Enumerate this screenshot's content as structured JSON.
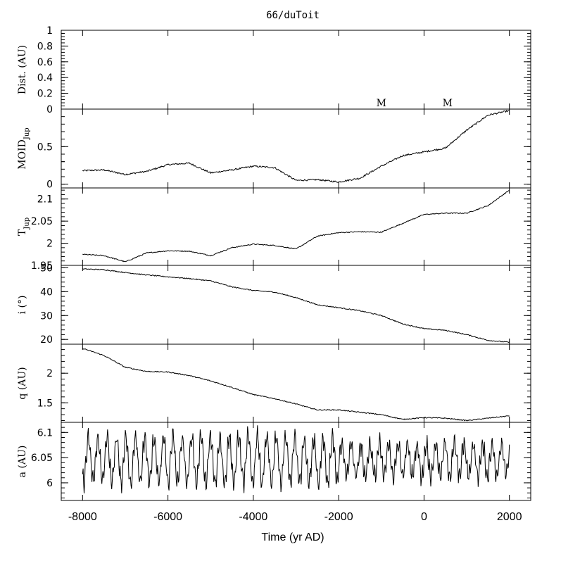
{
  "chart_data": {
    "type": "line",
    "title": "66/duToit",
    "xlabel": "Time (yr AD)",
    "xlim": [
      -8500,
      2500
    ],
    "xticks": [
      -8000,
      -6000,
      -4000,
      -2000,
      0,
      2000
    ],
    "xtick_labels": [
      "-8000",
      "-6000",
      "-4000",
      "-2000",
      "0",
      "2000"
    ],
    "panels": [
      {
        "key": "dist",
        "ylabel": "Dist. (AU)",
        "ylim": [
          0,
          1
        ],
        "yticks": [
          0,
          0.2,
          0.4,
          0.6,
          0.8,
          1
        ],
        "ytick_labels": [
          "0",
          "0.2",
          "0.4",
          "0.6",
          "0.8",
          "1"
        ],
        "x": [],
        "y": [],
        "markers": [
          {
            "label": "M",
            "x": -1000
          },
          {
            "label": "M",
            "x": 550
          }
        ]
      },
      {
        "key": "moid",
        "ylabel": "MOID",
        "ylabel_sub": "Jup",
        "style": "thick",
        "ylim": [
          -0.05,
          1.0
        ],
        "yticks": [
          0,
          0.5
        ],
        "ytick_labels": [
          "0",
          "0.5"
        ],
        "x": [
          -8000,
          -7500,
          -7000,
          -6500,
          -6000,
          -5500,
          -5000,
          -4500,
          -4000,
          -3500,
          -3000,
          -2500,
          -2000,
          -1500,
          -1000,
          -500,
          0,
          500,
          1000,
          1500,
          2000
        ],
        "y": [
          0.18,
          0.19,
          0.13,
          0.17,
          0.26,
          0.28,
          0.15,
          0.19,
          0.24,
          0.22,
          0.05,
          0.06,
          0.03,
          0.08,
          0.24,
          0.38,
          0.43,
          0.48,
          0.72,
          0.92,
          0.98
        ]
      },
      {
        "key": "tjup",
        "ylabel": "T",
        "ylabel_sub": "Jup",
        "ylim": [
          1.95,
          2.125
        ],
        "yticks": [
          1.95,
          2,
          2.05,
          2.1
        ],
        "ytick_labels": [
          "1.95",
          "2",
          "2.05",
          "2.1"
        ],
        "x": [
          -8000,
          -7500,
          -7000,
          -6500,
          -6000,
          -5500,
          -5000,
          -4500,
          -4000,
          -3500,
          -3000,
          -2500,
          -2000,
          -1500,
          -1000,
          -500,
          0,
          500,
          1000,
          1500,
          2000
        ],
        "y": [
          1.975,
          1.972,
          1.958,
          1.978,
          1.983,
          1.982,
          1.972,
          1.99,
          1.998,
          1.995,
          1.987,
          2.016,
          2.024,
          2.026,
          2.025,
          2.045,
          2.065,
          2.068,
          2.068,
          2.085,
          2.12
        ]
      },
      {
        "key": "incl",
        "ylabel": "i (°)",
        "ylim": [
          18,
          51
        ],
        "yticks": [
          20,
          30,
          40,
          50
        ],
        "ytick_labels": [
          "20",
          "30",
          "40",
          "50"
        ],
        "x": [
          -8000,
          -7500,
          -7000,
          -6500,
          -6000,
          -5500,
          -5000,
          -4500,
          -4000,
          -3500,
          -3000,
          -2500,
          -2000,
          -1500,
          -1000,
          -500,
          0,
          500,
          1000,
          1500,
          2000
        ],
        "y": [
          49.5,
          49.2,
          48.0,
          47.0,
          46.2,
          45.5,
          44.5,
          42.0,
          40.5,
          39.8,
          37.5,
          34.5,
          33.3,
          32.0,
          30.0,
          26.5,
          24.5,
          23.8,
          22.0,
          19.6,
          18.8
        ]
      },
      {
        "key": "q",
        "ylabel": "q (AU)",
        "ylim": [
          1.17,
          2.49
        ],
        "yticks": [
          1.5,
          2
        ],
        "ytick_labels": [
          "1.5",
          "2"
        ],
        "x": [
          -8000,
          -7500,
          -7000,
          -6500,
          -6000,
          -5500,
          -5000,
          -4500,
          -4000,
          -3500,
          -3000,
          -2500,
          -2000,
          -1500,
          -1000,
          -500,
          0,
          500,
          1000,
          1500,
          2000
        ],
        "y": [
          2.42,
          2.3,
          2.1,
          2.03,
          2.02,
          1.96,
          1.87,
          1.76,
          1.64,
          1.57,
          1.48,
          1.38,
          1.38,
          1.34,
          1.3,
          1.22,
          1.25,
          1.24,
          1.2,
          1.24,
          1.28
        ]
      },
      {
        "key": "a",
        "ylabel": "a (AU)",
        "ylim": [
          5.965,
          6.12
        ],
        "yticks": [
          6,
          6.05,
          6.1
        ],
        "ytick_labels": [
          "6",
          "6.05",
          "6.1"
        ],
        "style": "oscillating",
        "x": [
          -8000,
          -7500,
          -7000,
          -6500,
          -6000,
          -5500,
          -5000,
          -4500,
          -4000,
          -3500,
          -3000,
          -2500,
          -2000,
          -1500,
          -1000,
          -500,
          0,
          500,
          1000,
          1500,
          2000
        ],
        "y": [
          6.1,
          6.01,
          6.09,
          6.0,
          6.1,
          6.0,
          6.1,
          5.99,
          6.12,
          5.98,
          6.11,
          6.0,
          6.08,
          6.02,
          6.08,
          6.0,
          6.07,
          6.02,
          6.06,
          6.0,
          6.04
        ]
      }
    ]
  }
}
